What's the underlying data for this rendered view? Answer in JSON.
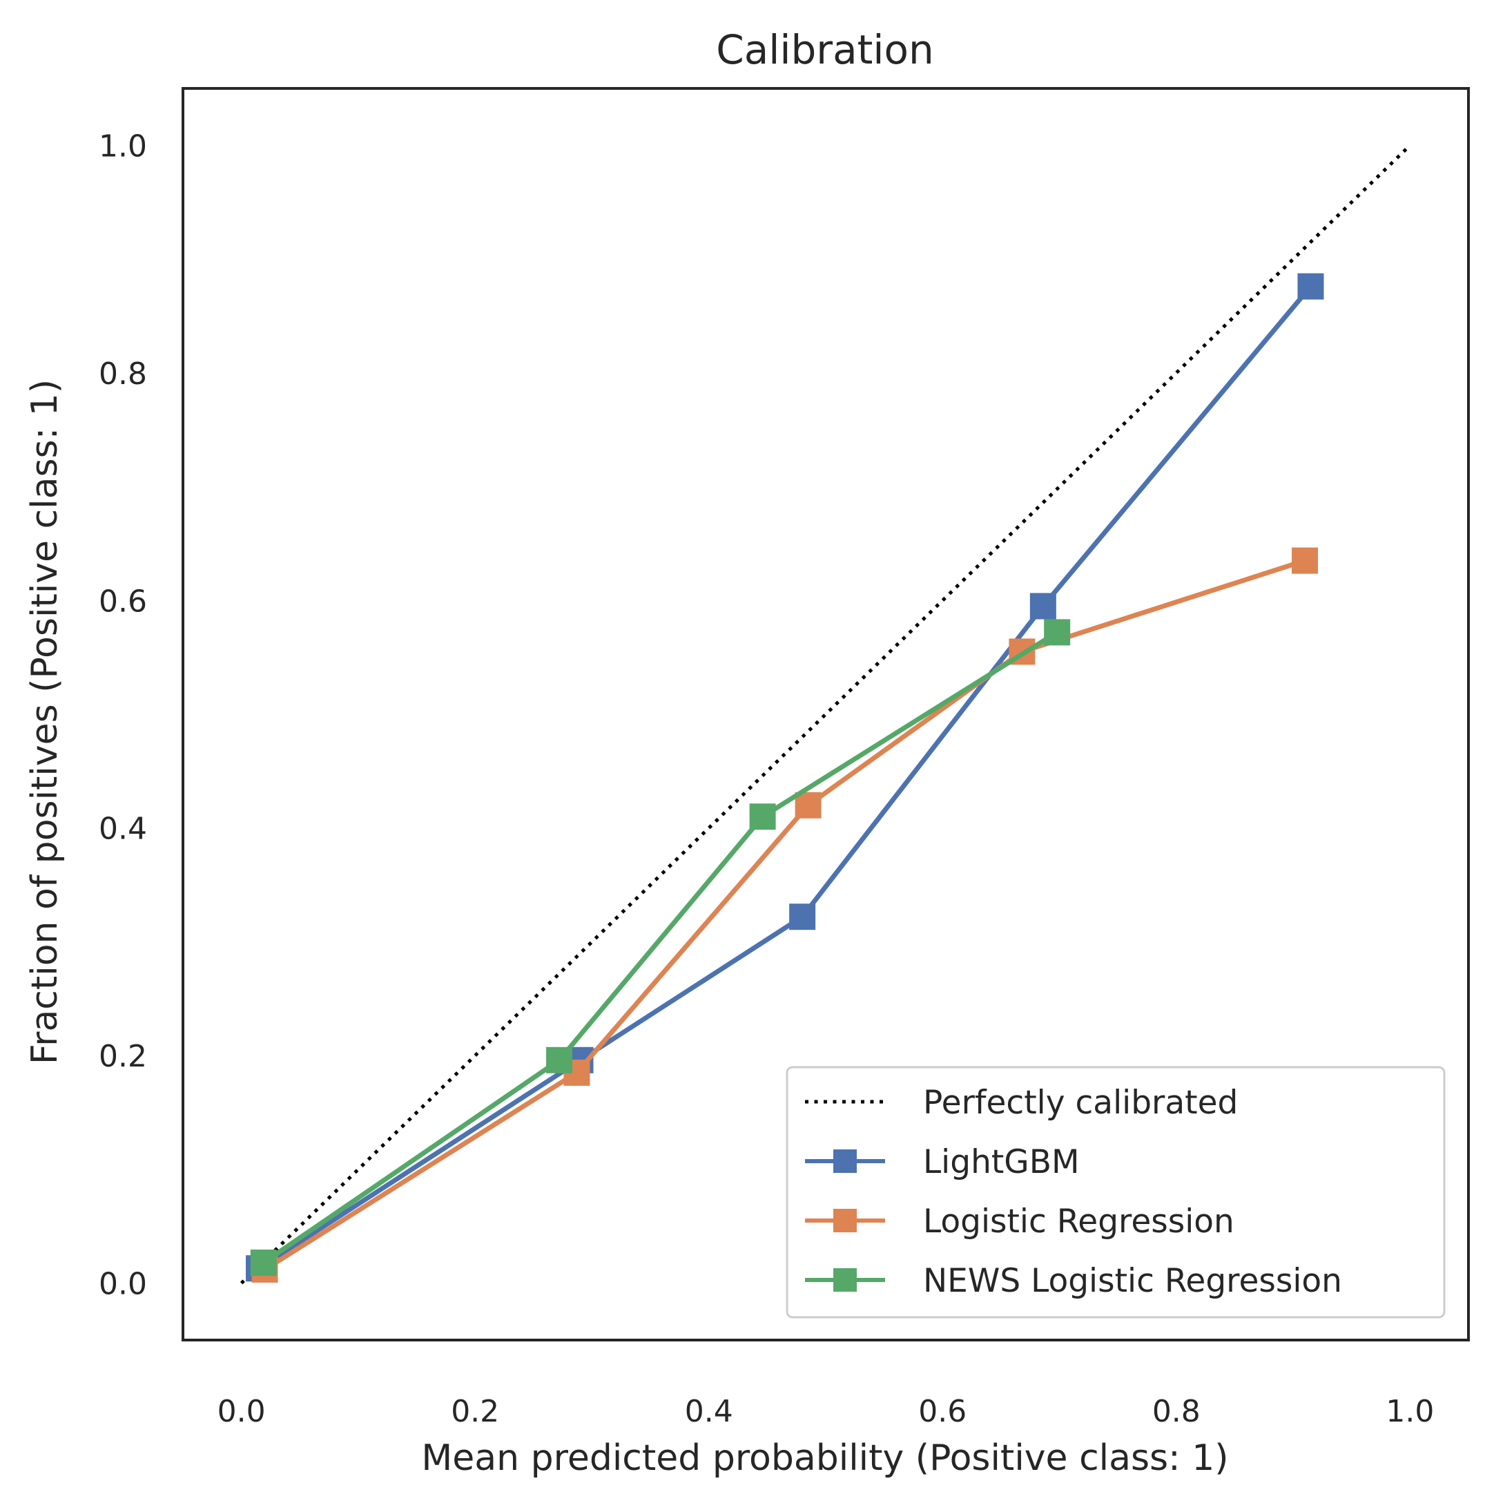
{
  "chart_data": {
    "type": "line",
    "title": "Calibration",
    "xlabel": "Mean predicted probability (Positive class: 1)",
    "ylabel": "Fraction of positives (Positive class: 1)",
    "xlim": [
      -0.05,
      1.05
    ],
    "ylim": [
      -0.05,
      1.05
    ],
    "xticks": [
      "0.0",
      "0.2",
      "0.4",
      "0.6",
      "0.8",
      "1.0"
    ],
    "yticks": [
      "0.0",
      "0.2",
      "0.4",
      "0.6",
      "0.8",
      "1.0"
    ],
    "grid": false,
    "legend_position": "lower-right",
    "reference": {
      "name": "Perfectly calibrated",
      "x": [
        0,
        1
      ],
      "y": [
        0,
        1
      ],
      "color": "#000000",
      "style": "dotted"
    },
    "series": [
      {
        "name": "LightGBM",
        "color": "#4c72b0",
        "x": [
          0.015,
          0.29,
          0.48,
          0.686,
          0.915
        ],
        "y": [
          0.013,
          0.196,
          0.322,
          0.595,
          0.876
        ]
      },
      {
        "name": "Logistic Regression",
        "color": "#dd8452",
        "x": [
          0.02,
          0.287,
          0.485,
          0.668,
          0.91
        ],
        "y": [
          0.012,
          0.185,
          0.42,
          0.555,
          0.635
        ]
      },
      {
        "name": "NEWS Logistic Regression",
        "color": "#55a868",
        "x": [
          0.019,
          0.272,
          0.446,
          0.698
        ],
        "y": [
          0.018,
          0.196,
          0.41,
          0.572
        ]
      }
    ]
  }
}
